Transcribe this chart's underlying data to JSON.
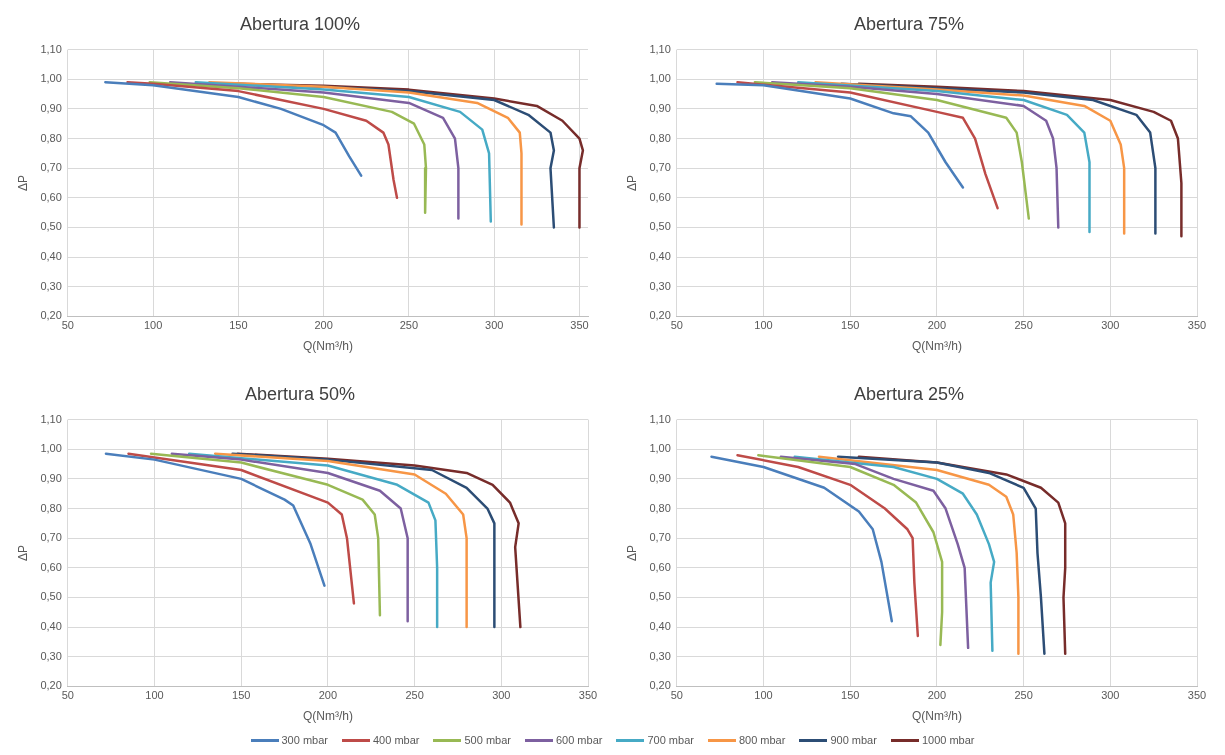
{
  "chart_data": [
    {
      "type": "line",
      "title": "Abertura 100%",
      "xlabel": "Q(Nm³/h)",
      "ylabel": "ΔP",
      "xlim": [
        50,
        355
      ],
      "xticks": [
        50,
        100,
        150,
        200,
        250,
        300,
        350
      ],
      "ylim": [
        0.2,
        1.1
      ],
      "yticks": [
        {
          "value": 0.2,
          "label": "0,20"
        },
        {
          "value": 0.3,
          "label": "0,30"
        },
        {
          "value": 0.4,
          "label": "0,40"
        },
        {
          "value": 0.5,
          "label": "0,50"
        },
        {
          "value": 0.6,
          "label": "0,60"
        },
        {
          "value": 0.7,
          "label": "0,70"
        },
        {
          "value": 0.8,
          "label": "0,80"
        },
        {
          "value": 0.9,
          "label": "0,90"
        },
        {
          "value": 1.0,
          "label": "1,00"
        },
        {
          "value": 1.1,
          "label": "1,10"
        }
      ],
      "grid": true,
      "marker": "none",
      "legend": "bottom",
      "series": [
        {
          "name": "300 mbar",
          "color": "#4a7ebb",
          "x": [
            72,
            100,
            150,
            175,
            200,
            207,
            215,
            222
          ],
          "values": [
            0.99,
            0.98,
            0.94,
            0.9,
            0.845,
            0.82,
            0.74,
            0.675
          ]
        },
        {
          "name": "400 mbar",
          "color": "#be4b48",
          "x": [
            85,
            100,
            150,
            200,
            225,
            235,
            238,
            241,
            243
          ],
          "values": [
            0.99,
            0.985,
            0.96,
            0.9,
            0.86,
            0.82,
            0.78,
            0.66,
            0.6
          ]
        },
        {
          "name": "500 mbar",
          "color": "#98b954",
          "x": [
            98,
            150,
            200,
            240,
            253,
            259,
            260,
            259.5
          ],
          "values": [
            0.99,
            0.97,
            0.94,
            0.89,
            0.85,
            0.78,
            0.7,
            0.55
          ]
        },
        {
          "name": "600 mbar",
          "color": "#7d60a0",
          "x": [
            110,
            150,
            200,
            250,
            270,
            277,
            279,
            279
          ],
          "values": [
            0.99,
            0.975,
            0.955,
            0.92,
            0.87,
            0.8,
            0.7,
            0.53
          ]
        },
        {
          "name": "700 mbar",
          "color": "#46aac5",
          "x": [
            125,
            200,
            250,
            280,
            293,
            297,
            298
          ],
          "values": [
            0.99,
            0.965,
            0.94,
            0.89,
            0.83,
            0.75,
            0.52
          ]
        },
        {
          "name": "800 mbar",
          "color": "#f79646",
          "x": [
            133,
            200,
            250,
            290,
            308,
            315,
            316,
            316
          ],
          "values": [
            0.99,
            0.975,
            0.955,
            0.92,
            0.87,
            0.82,
            0.75,
            0.51
          ]
        },
        {
          "name": "900 mbar",
          "color": "#2c4d75",
          "x": [
            145,
            200,
            250,
            300,
            320,
            333,
            335,
            333,
            335
          ],
          "values": [
            0.985,
            0.975,
            0.96,
            0.93,
            0.88,
            0.82,
            0.76,
            0.7,
            0.5
          ]
        },
        {
          "name": "1000 mbar",
          "color": "#772c2a",
          "x": [
            148,
            200,
            250,
            300,
            325,
            340,
            350,
            352,
            350,
            350
          ],
          "values": [
            0.985,
            0.978,
            0.965,
            0.935,
            0.91,
            0.86,
            0.8,
            0.76,
            0.7,
            0.5
          ]
        }
      ]
    },
    {
      "type": "line",
      "title": "Abertura 75%",
      "xlabel": "Q(Nm³/h)",
      "ylabel": "ΔP",
      "xlim": [
        50,
        350
      ],
      "xticks": [
        50,
        100,
        150,
        200,
        250,
        300,
        350
      ],
      "ylim": [
        0.2,
        1.1
      ],
      "yticks": [
        {
          "value": 0.2,
          "label": "0,20"
        },
        {
          "value": 0.3,
          "label": "0,30"
        },
        {
          "value": 0.4,
          "label": "0,40"
        },
        {
          "value": 0.5,
          "label": "0,50"
        },
        {
          "value": 0.6,
          "label": "0,60"
        },
        {
          "value": 0.7,
          "label": "0,70"
        },
        {
          "value": 0.8,
          "label": "0,80"
        },
        {
          "value": 0.9,
          "label": "0,90"
        },
        {
          "value": 1.0,
          "label": "1,00"
        },
        {
          "value": 1.1,
          "label": "1,10"
        }
      ],
      "grid": true,
      "marker": "none",
      "series": [
        {
          "color": "#4a7ebb",
          "x": [
            73,
            100,
            150,
            175,
            185,
            195,
            205,
            215
          ],
          "values": [
            0.985,
            0.98,
            0.935,
            0.885,
            0.875,
            0.82,
            0.72,
            0.635
          ]
        },
        {
          "color": "#be4b48",
          "x": [
            85,
            150,
            200,
            215,
            222,
            228,
            235
          ],
          "values": [
            0.99,
            0.955,
            0.89,
            0.87,
            0.8,
            0.68,
            0.565
          ]
        },
        {
          "color": "#98b954",
          "x": [
            95,
            150,
            200,
            240,
            246,
            249,
            253
          ],
          "values": [
            0.99,
            0.97,
            0.93,
            0.87,
            0.82,
            0.72,
            0.53
          ]
        },
        {
          "color": "#7d60a0",
          "x": [
            105,
            150,
            200,
            250,
            263,
            267,
            269,
            270
          ],
          "values": [
            0.99,
            0.975,
            0.95,
            0.91,
            0.86,
            0.8,
            0.7,
            0.5
          ]
        },
        {
          "color": "#46aac5",
          "x": [
            120,
            200,
            250,
            275,
            285,
            288,
            288
          ],
          "values": [
            0.99,
            0.96,
            0.93,
            0.88,
            0.82,
            0.72,
            0.485
          ]
        },
        {
          "color": "#f79646",
          "x": [
            130,
            200,
            250,
            285,
            300,
            306,
            308,
            308
          ],
          "values": [
            0.99,
            0.965,
            0.945,
            0.91,
            0.86,
            0.78,
            0.7,
            0.48
          ]
        },
        {
          "color": "#2c4d75",
          "x": [
            145,
            200,
            250,
            290,
            315,
            323,
            326,
            326
          ],
          "values": [
            0.985,
            0.97,
            0.955,
            0.93,
            0.88,
            0.82,
            0.7,
            0.48
          ]
        },
        {
          "color": "#772c2a",
          "x": [
            155,
            200,
            250,
            300,
            325,
            335,
            339,
            341,
            341
          ],
          "values": [
            0.985,
            0.975,
            0.96,
            0.93,
            0.89,
            0.86,
            0.8,
            0.65,
            0.47
          ]
        }
      ]
    },
    {
      "type": "line",
      "title": "Abertura 50%",
      "xlabel": "Q(Nm³/h)",
      "ylabel": "ΔP",
      "xlim": [
        50,
        350
      ],
      "xticks": [
        50,
        100,
        150,
        200,
        250,
        300,
        350
      ],
      "ylim": [
        0.2,
        1.1
      ],
      "yticks": [
        {
          "value": 0.2,
          "label": "0,20"
        },
        {
          "value": 0.3,
          "label": "0,30"
        },
        {
          "value": 0.4,
          "label": "0,40"
        },
        {
          "value": 0.5,
          "label": "0,50"
        },
        {
          "value": 0.6,
          "label": "0,60"
        },
        {
          "value": 0.7,
          "label": "0,70"
        },
        {
          "value": 0.8,
          "label": "0,80"
        },
        {
          "value": 0.9,
          "label": "0,90"
        },
        {
          "value": 1.0,
          "label": "1,00"
        },
        {
          "value": 1.1,
          "label": "1,10"
        }
      ],
      "grid": true,
      "marker": "none",
      "series": [
        {
          "color": "#4a7ebb",
          "x": [
            72,
            100,
            150,
            175,
            180,
            190,
            198
          ],
          "values": [
            0.985,
            0.965,
            0.9,
            0.83,
            0.81,
            0.68,
            0.54
          ]
        },
        {
          "color": "#be4b48",
          "x": [
            85,
            150,
            200,
            208,
            211,
            215
          ],
          "values": [
            0.985,
            0.93,
            0.82,
            0.78,
            0.7,
            0.48
          ]
        },
        {
          "color": "#98b954",
          "x": [
            98,
            150,
            200,
            220,
            227,
            229,
            230
          ],
          "values": [
            0.985,
            0.955,
            0.88,
            0.83,
            0.78,
            0.7,
            0.44
          ]
        },
        {
          "color": "#7d60a0",
          "x": [
            110,
            150,
            200,
            230,
            242,
            246,
            246
          ],
          "values": [
            0.985,
            0.965,
            0.92,
            0.86,
            0.8,
            0.7,
            0.42
          ]
        },
        {
          "color": "#46aac5",
          "x": [
            120,
            200,
            240,
            258,
            262,
            263,
            263
          ],
          "values": [
            0.985,
            0.945,
            0.88,
            0.82,
            0.76,
            0.6,
            0.4
          ]
        },
        {
          "color": "#f79646",
          "x": [
            135,
            200,
            250,
            268,
            278,
            280,
            280
          ],
          "values": [
            0.985,
            0.96,
            0.915,
            0.85,
            0.78,
            0.7,
            0.4
          ]
        },
        {
          "color": "#2c4d75",
          "x": [
            145,
            200,
            260,
            280,
            292,
            296,
            296
          ],
          "values": [
            0.985,
            0.965,
            0.93,
            0.87,
            0.8,
            0.75,
            0.4
          ]
        },
        {
          "color": "#772c2a",
          "x": [
            148,
            200,
            250,
            280,
            295,
            305,
            310,
            308,
            311
          ],
          "values": [
            0.985,
            0.968,
            0.945,
            0.92,
            0.88,
            0.82,
            0.75,
            0.67,
            0.4
          ]
        }
      ]
    },
    {
      "type": "line",
      "title": "Abertura 25%",
      "xlabel": "Q(Nm³/h)",
      "ylabel": "ΔP",
      "xlim": [
        50,
        350
      ],
      "xticks": [
        50,
        100,
        150,
        200,
        250,
        300,
        350
      ],
      "ylim": [
        0.2,
        1.1
      ],
      "yticks": [
        {
          "value": 0.2,
          "label": "0,20"
        },
        {
          "value": 0.3,
          "label": "0,30"
        },
        {
          "value": 0.4,
          "label": "0,40"
        },
        {
          "value": 0.5,
          "label": "0,50"
        },
        {
          "value": 0.6,
          "label": "0,60"
        },
        {
          "value": 0.7,
          "label": "0,70"
        },
        {
          "value": 0.8,
          "label": "0,80"
        },
        {
          "value": 0.9,
          "label": "0,90"
        },
        {
          "value": 1.0,
          "label": "1,00"
        },
        {
          "value": 1.1,
          "label": "1,10"
        }
      ],
      "grid": true,
      "marker": "none",
      "series": [
        {
          "color": "#4a7ebb",
          "x": [
            70,
            100,
            135,
            155,
            163,
            168,
            174
          ],
          "values": [
            0.975,
            0.94,
            0.87,
            0.79,
            0.73,
            0.62,
            0.42
          ]
        },
        {
          "color": "#be4b48",
          "x": [
            85,
            120,
            150,
            170,
            183,
            186,
            187,
            189
          ],
          "values": [
            0.98,
            0.94,
            0.88,
            0.8,
            0.73,
            0.7,
            0.55,
            0.37
          ]
        },
        {
          "color": "#98b954",
          "x": [
            97,
            150,
            175,
            188,
            198,
            203,
            203,
            202
          ],
          "values": [
            0.98,
            0.94,
            0.88,
            0.82,
            0.72,
            0.62,
            0.45,
            0.34
          ]
        },
        {
          "color": "#7d60a0",
          "x": [
            110,
            153,
            175,
            198,
            205,
            212,
            216,
            218
          ],
          "values": [
            0.975,
            0.95,
            0.9,
            0.86,
            0.8,
            0.68,
            0.6,
            0.33
          ]
        },
        {
          "color": "#46aac5",
          "x": [
            118,
            175,
            200,
            215,
            223,
            230,
            233,
            231,
            232
          ],
          "values": [
            0.975,
            0.94,
            0.9,
            0.85,
            0.78,
            0.68,
            0.62,
            0.55,
            0.32
          ]
        },
        {
          "color": "#f79646",
          "x": [
            132,
            200,
            230,
            240,
            244,
            246,
            247,
            247
          ],
          "values": [
            0.975,
            0.93,
            0.88,
            0.84,
            0.78,
            0.65,
            0.5,
            0.31
          ]
        },
        {
          "color": "#2c4d75",
          "x": [
            143,
            200,
            230,
            250,
            257,
            258,
            260,
            262
          ],
          "values": [
            0.975,
            0.955,
            0.92,
            0.87,
            0.8,
            0.65,
            0.5,
            0.31
          ]
        },
        {
          "color": "#772c2a",
          "x": [
            155,
            200,
            240,
            260,
            270,
            274,
            274,
            273,
            274
          ],
          "values": [
            0.975,
            0.955,
            0.915,
            0.87,
            0.82,
            0.75,
            0.6,
            0.5,
            0.31
          ]
        }
      ]
    }
  ]
}
